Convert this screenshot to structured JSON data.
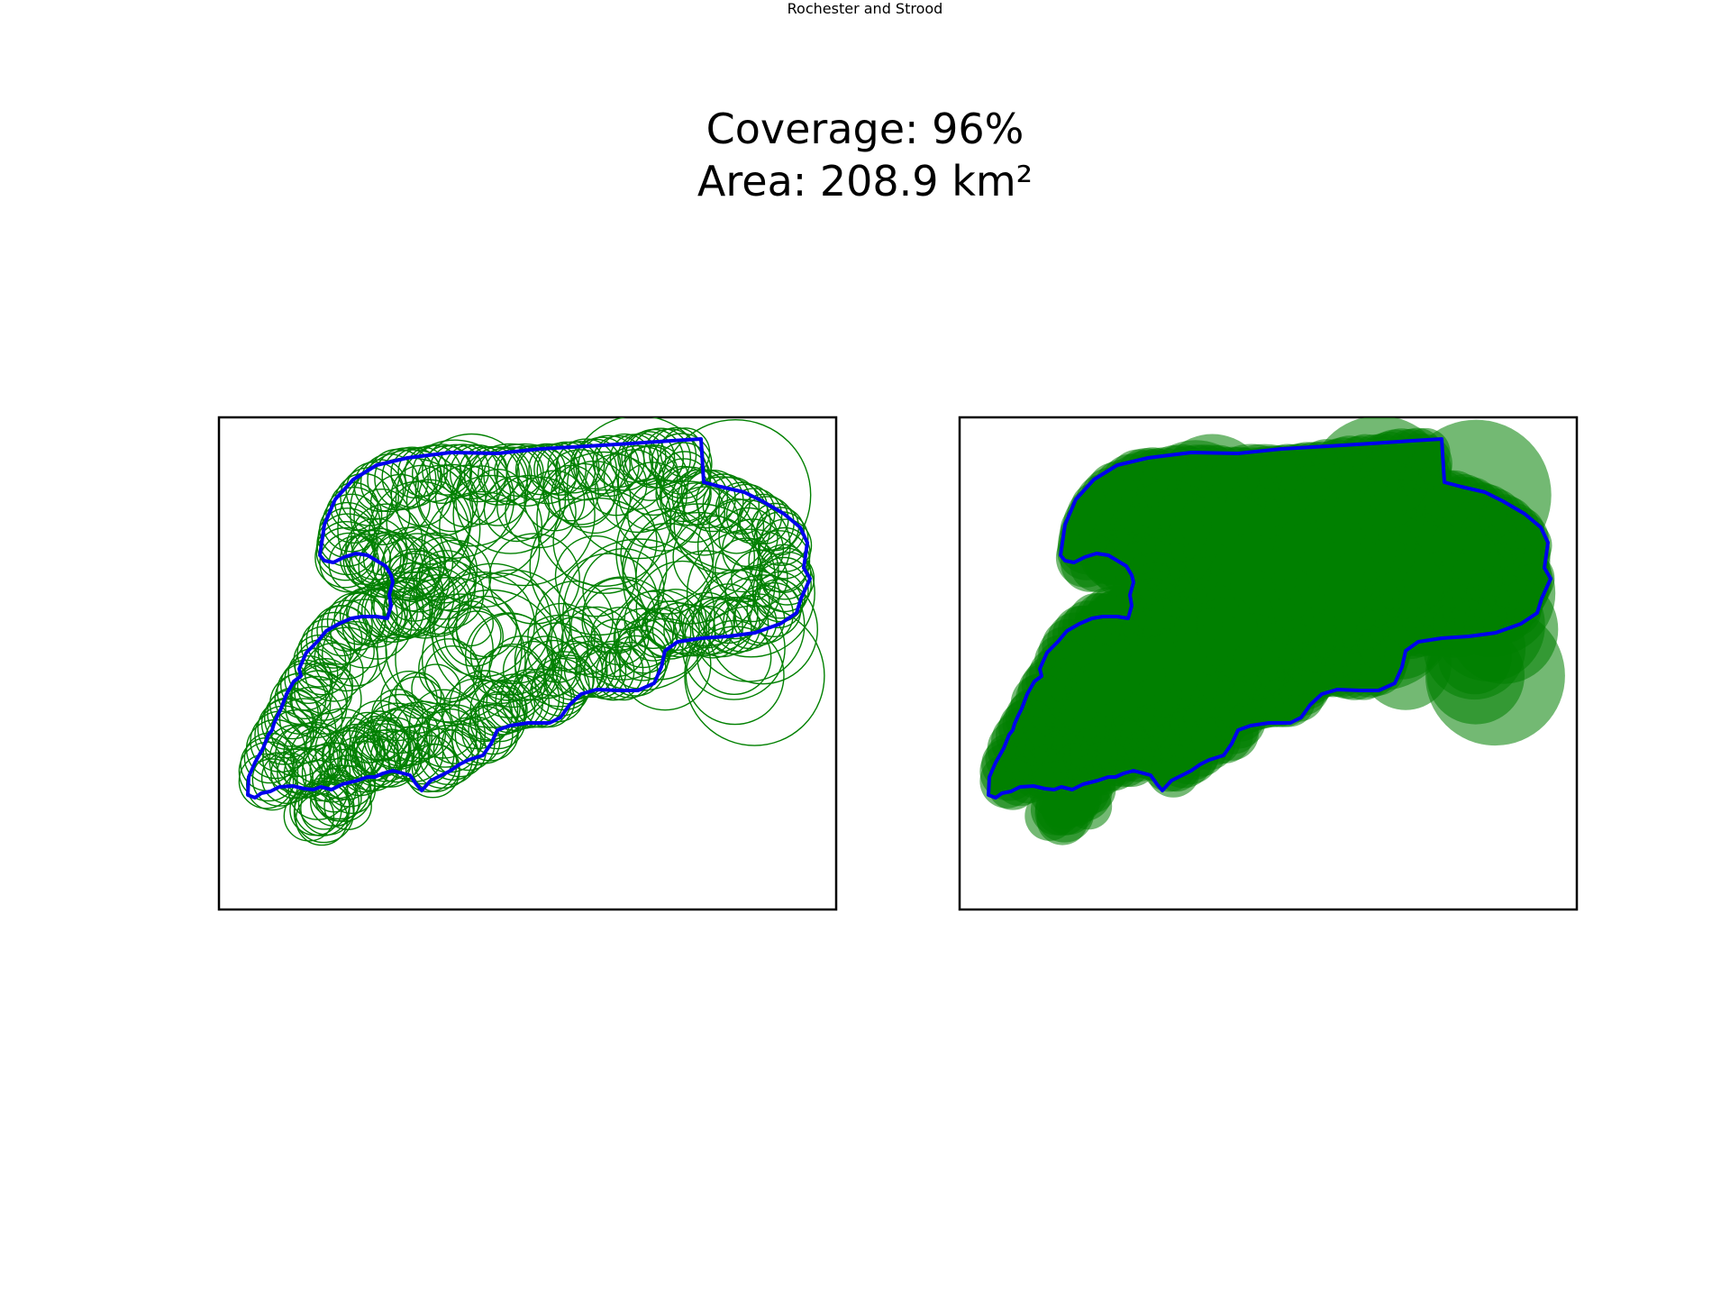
{
  "figure": {
    "title": "Rochester and Strood",
    "coverage_line": "Coverage: 96%",
    "area_line": "Area: 208.9 km²"
  },
  "coverage_percent": 96,
  "area_km2": 208.9,
  "colors": {
    "boundary": "#0000ee",
    "circles": "#008000",
    "frame": "#000000",
    "background": "#ffffff"
  },
  "panels": [
    {
      "name": "circle-outlines",
      "style": "outline"
    },
    {
      "name": "circle-fills",
      "style": "filled"
    }
  ]
}
